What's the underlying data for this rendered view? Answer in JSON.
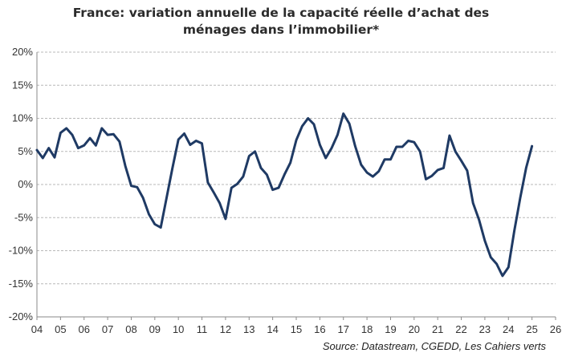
{
  "chart_data": {
    "type": "line",
    "title_line1": "France: variation annuelle  de la capacité réelle   d’achat des",
    "title_line2": "ménages dans l’immobilier*",
    "source": "Source: Datastream, CGEDD, Les Cahiers verts",
    "xlabel": "",
    "ylabel": "",
    "xlim": [
      4,
      26
    ],
    "ylim": [
      -20,
      20
    ],
    "x_ticks": [
      "04",
      "05",
      "06",
      "07",
      "08",
      "09",
      "10",
      "11",
      "12",
      "13",
      "14",
      "15",
      "16",
      "17",
      "18",
      "19",
      "20",
      "21",
      "22",
      "23",
      "24",
      "25",
      "26"
    ],
    "y_ticks": [
      "20%",
      "15%",
      "10%",
      "5%",
      "0%",
      "-5%",
      "-10%",
      "-15%",
      "-20%"
    ],
    "y_tick_values": [
      20,
      15,
      10,
      5,
      0,
      -5,
      -10,
      -15,
      -20
    ],
    "grid": "horizontal dashed",
    "line_color": "#1f3a64",
    "series": [
      {
        "points": [
          [
            4.0,
            5.2
          ],
          [
            4.25,
            4.0
          ],
          [
            4.5,
            5.5
          ],
          [
            4.75,
            4.1
          ],
          [
            5.0,
            7.8
          ],
          [
            5.25,
            8.5
          ],
          [
            5.5,
            7.5
          ],
          [
            5.75,
            5.5
          ],
          [
            6.0,
            5.9
          ],
          [
            6.25,
            7.0
          ],
          [
            6.5,
            5.9
          ],
          [
            6.75,
            8.5
          ],
          [
            7.0,
            7.5
          ],
          [
            7.25,
            7.6
          ],
          [
            7.5,
            6.5
          ],
          [
            7.75,
            2.8
          ],
          [
            8.0,
            -0.2
          ],
          [
            8.25,
            -0.4
          ],
          [
            8.5,
            -2.0
          ],
          [
            8.75,
            -4.5
          ],
          [
            9.0,
            -6.0
          ],
          [
            9.25,
            -6.5
          ],
          [
            9.5,
            -2.0
          ],
          [
            9.75,
            2.5
          ],
          [
            10.0,
            6.8
          ],
          [
            10.25,
            7.7
          ],
          [
            10.5,
            6.0
          ],
          [
            10.75,
            6.6
          ],
          [
            11.0,
            6.2
          ],
          [
            11.25,
            0.3
          ],
          [
            11.5,
            -1.2
          ],
          [
            11.75,
            -2.8
          ],
          [
            12.0,
            -5.2
          ],
          [
            12.25,
            -0.5
          ],
          [
            12.5,
            0.1
          ],
          [
            12.75,
            1.2
          ],
          [
            13.0,
            4.3
          ],
          [
            13.25,
            5.0
          ],
          [
            13.5,
            2.5
          ],
          [
            13.75,
            1.5
          ],
          [
            14.0,
            -0.8
          ],
          [
            14.25,
            -0.5
          ],
          [
            14.5,
            1.5
          ],
          [
            14.75,
            3.3
          ],
          [
            15.0,
            6.7
          ],
          [
            15.25,
            8.8
          ],
          [
            15.5,
            10.0
          ],
          [
            15.75,
            9.1
          ],
          [
            16.0,
            6.0
          ],
          [
            16.25,
            4.0
          ],
          [
            16.5,
            5.5
          ],
          [
            16.75,
            7.5
          ],
          [
            17.0,
            10.7
          ],
          [
            17.25,
            9.2
          ],
          [
            17.5,
            5.8
          ],
          [
            17.75,
            3.0
          ],
          [
            18.0,
            1.8
          ],
          [
            18.25,
            1.2
          ],
          [
            18.5,
            2.0
          ],
          [
            18.75,
            3.8
          ],
          [
            19.0,
            3.8
          ],
          [
            19.25,
            5.7
          ],
          [
            19.5,
            5.7
          ],
          [
            19.75,
            6.6
          ],
          [
            20.0,
            6.4
          ],
          [
            20.25,
            5.0
          ],
          [
            20.5,
            0.8
          ],
          [
            20.75,
            1.3
          ],
          [
            21.0,
            2.2
          ],
          [
            21.25,
            2.5
          ],
          [
            21.5,
            7.4
          ],
          [
            21.75,
            5.0
          ],
          [
            22.0,
            3.6
          ],
          [
            22.25,
            2.1
          ],
          [
            22.5,
            -2.8
          ],
          [
            22.75,
            -5.3
          ],
          [
            23.0,
            -8.5
          ],
          [
            23.25,
            -11.0
          ],
          [
            23.5,
            -12.0
          ],
          [
            23.75,
            -13.8
          ],
          [
            24.0,
            -12.5
          ],
          [
            24.25,
            -7.0
          ],
          [
            24.5,
            -2.0
          ],
          [
            24.75,
            2.5
          ],
          [
            25.0,
            5.8
          ]
        ]
      }
    ]
  }
}
